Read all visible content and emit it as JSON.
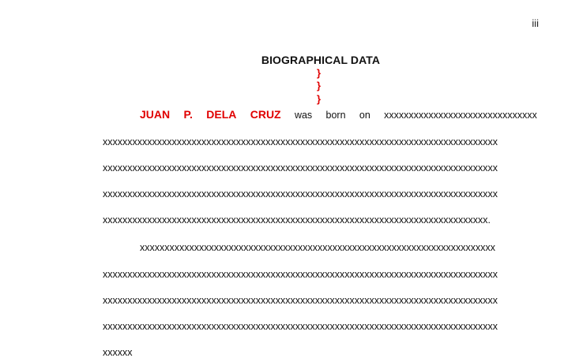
{
  "page": {
    "page_number": "iii",
    "title": "BIOGRAPHICAL DATA",
    "braces": [
      "}",
      "}",
      "}"
    ]
  },
  "paragraph1": {
    "name_words": [
      "JUAN",
      "P.",
      "DELA",
      "CRUZ"
    ],
    "first_line_words": [
      "was",
      "born",
      "on",
      "xxxxxxxxxxxxxxxxxxxxxxxxxxxxxxx"
    ],
    "lines": [
      "xxxxxxxxxxxxxxxxxxxxxxxxxxxxxxxxxxxxxxxxxxxxxxxxxxxxxxxxxxxxxxxxxxxxxxxxxxxxxxxx",
      "xxxxxxxxxxxxxxxxxxxxxxxxxxxxxxxxxxxxxxxxxxxxxxxxxxxxxxxxxxxxxxxxxxxxxxxxxxxxxxxx",
      "xxxxxxxxxxxxxxxxxxxxxxxxxxxxxxxxxxxxxxxxxxxxxxxxxxxxxxxxxxxxxxxxxxxxxxxxxxxxxxxx",
      "xxxxxxxxxxxxxxxxxxxxxxxxxxxxxxxxxxxxxxxxxxxxxxxxxxxxxxxxxxxxxxxxxxxxxxxxxxxxxx."
    ]
  },
  "paragraph2": {
    "first_line": "xxxxxxxxxxxxxxxxxxxxxxxxxxxxxxxxxxxxxxxxxxxxxxxxxxxxxxxxxxxxxxxxxxxxxxxx",
    "lines": [
      "xxxxxxxxxxxxxxxxxxxxxxxxxxxxxxxxxxxxxxxxxxxxxxxxxxxxxxxxxxxxxxxxxxxxxxxxxxxxxxxx",
      "xxxxxxxxxxxxxxxxxxxxxxxxxxxxxxxxxxxxxxxxxxxxxxxxxxxxxxxxxxxxxxxxxxxxxxxxxxxxxxxx",
      "xxxxxxxxxxxxxxxxxxxxxxxxxxxxxxxxxxxxxxxxxxxxxxxxxxxxxxxxxxxxxxxxxxxxxxxxxxxxxxxx",
      "xxxxxx"
    ]
  }
}
